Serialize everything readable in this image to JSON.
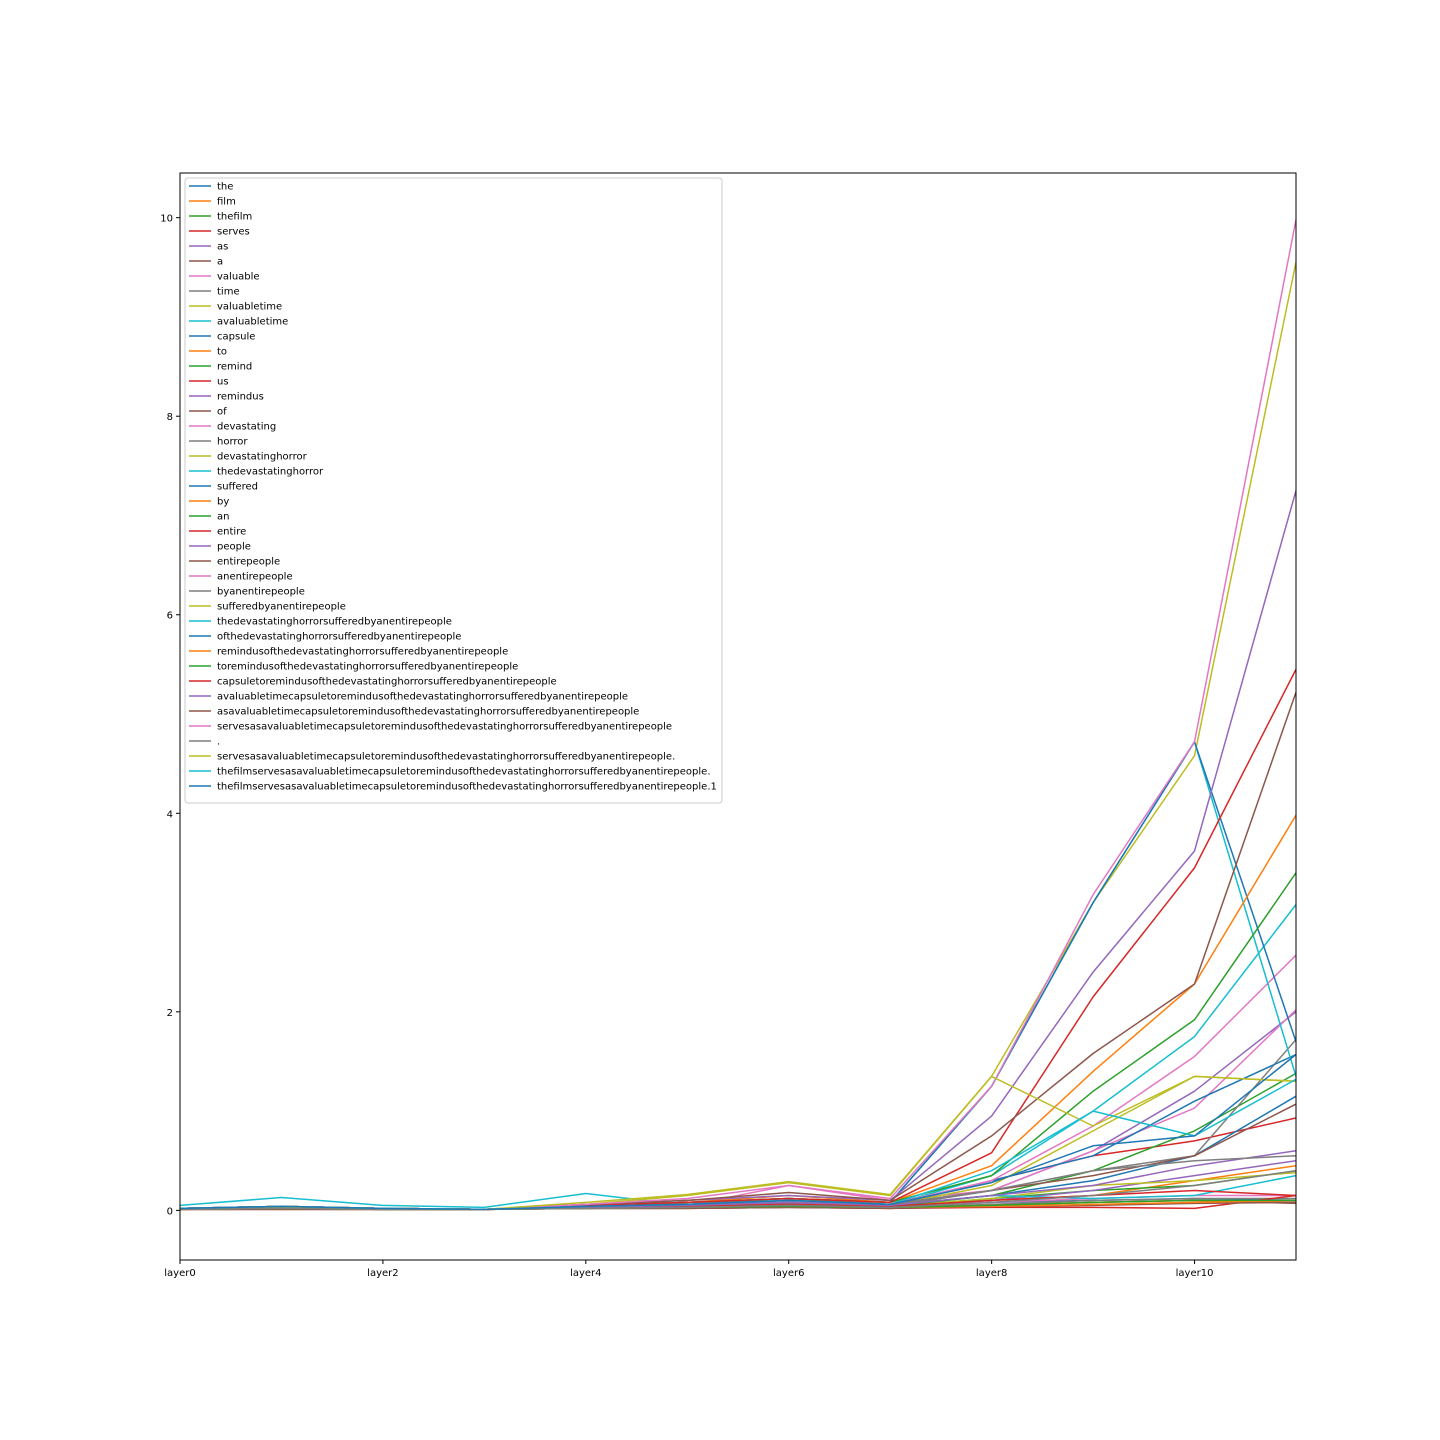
{
  "chart_data": {
    "type": "line",
    "title": "",
    "xlabel": "",
    "ylabel": "",
    "x": [
      "layer0",
      "layer1",
      "layer2",
      "layer3",
      "layer4",
      "layer5",
      "layer6",
      "layer7",
      "layer8",
      "layer9",
      "layer10",
      "layer11"
    ],
    "x_tick_labels": [
      "layer0",
      "layer2",
      "layer4",
      "layer6",
      "layer8",
      "layer10"
    ],
    "y_tick_labels": [
      "0",
      "2",
      "4",
      "6",
      "8",
      "10"
    ],
    "ylim": [
      -0.5,
      10.45
    ],
    "legend_position": "upper-left",
    "grid": false,
    "palette": [
      "#1f77b4",
      "#ff7f0e",
      "#2ca02c",
      "#d62728",
      "#9467bd",
      "#8c564b",
      "#e377c2",
      "#7f7f7f",
      "#bcbd22",
      "#17becf"
    ],
    "series": [
      {
        "name": "the",
        "values": [
          0.01,
          0.02,
          0.01,
          0.01,
          0.03,
          0.04,
          0.06,
          0.03,
          0.08,
          0.1,
          0.12,
          0.1
        ]
      },
      {
        "name": "film",
        "values": [
          0.02,
          0.03,
          0.02,
          0.01,
          0.03,
          0.03,
          0.05,
          0.04,
          0.1,
          0.15,
          0.3,
          0.45
        ]
      },
      {
        "name": "thefilm",
        "values": [
          0.01,
          0.02,
          0.01,
          0.01,
          0.02,
          0.03,
          0.05,
          0.03,
          0.12,
          0.2,
          0.25,
          0.4
        ]
      },
      {
        "name": "serves",
        "values": [
          0.02,
          0.03,
          0.02,
          0.01,
          0.04,
          0.05,
          0.08,
          0.05,
          0.3,
          0.55,
          0.7,
          0.93
        ]
      },
      {
        "name": "as",
        "values": [
          0.01,
          0.02,
          0.01,
          0.01,
          0.03,
          0.03,
          0.04,
          0.03,
          0.1,
          0.2,
          0.35,
          0.5
        ]
      },
      {
        "name": "a",
        "values": [
          0.01,
          0.01,
          0.01,
          0.01,
          0.02,
          0.02,
          0.03,
          0.02,
          0.05,
          0.08,
          0.1,
          0.07
        ]
      },
      {
        "name": "valuable",
        "values": [
          0.01,
          0.02,
          0.01,
          0.01,
          0.02,
          0.03,
          0.05,
          0.03,
          0.08,
          0.12,
          0.15,
          0.15
        ]
      },
      {
        "name": "time",
        "values": [
          0.01,
          0.02,
          0.01,
          0.01,
          0.02,
          0.03,
          0.04,
          0.03,
          0.06,
          0.1,
          0.12,
          0.12
        ]
      },
      {
        "name": "valuabletime",
        "values": [
          0.01,
          0.02,
          0.01,
          0.01,
          0.03,
          0.04,
          0.06,
          0.04,
          0.12,
          0.25,
          0.3,
          0.38
        ]
      },
      {
        "name": "avaluabletime",
        "values": [
          0.02,
          0.03,
          0.02,
          0.01,
          0.03,
          0.05,
          0.06,
          0.04,
          0.15,
          0.12,
          0.15,
          0.35
        ]
      },
      {
        "name": "capsule",
        "values": [
          0.02,
          0.04,
          0.02,
          0.01,
          0.04,
          0.05,
          0.08,
          0.05,
          0.15,
          0.3,
          0.55,
          1.15
        ]
      },
      {
        "name": "to",
        "values": [
          0.01,
          0.02,
          0.01,
          0.01,
          0.02,
          0.03,
          0.04,
          0.03,
          0.05,
          0.08,
          0.1,
          0.08
        ]
      },
      {
        "name": "remind",
        "values": [
          0.02,
          0.03,
          0.02,
          0.01,
          0.03,
          0.04,
          0.06,
          0.04,
          0.15,
          0.4,
          0.8,
          1.38
        ]
      },
      {
        "name": "us",
        "values": [
          0.01,
          0.01,
          0.01,
          0.01,
          0.02,
          0.02,
          0.03,
          0.02,
          0.03,
          0.03,
          0.02,
          0.15
        ]
      },
      {
        "name": "remindus",
        "values": [
          0.02,
          0.03,
          0.02,
          0.01,
          0.03,
          0.04,
          0.07,
          0.04,
          0.2,
          0.6,
          1.2,
          2.0
        ]
      },
      {
        "name": "of",
        "values": [
          0.01,
          0.01,
          0.01,
          0.01,
          0.02,
          0.02,
          0.03,
          0.02,
          0.04,
          0.05,
          0.07,
          0.08
        ]
      },
      {
        "name": "devastating",
        "values": [
          0.02,
          0.03,
          0.02,
          0.01,
          0.03,
          0.05,
          0.25,
          0.1,
          0.2,
          0.6,
          1.03,
          2.02
        ]
      },
      {
        "name": "horror",
        "values": [
          0.02,
          0.03,
          0.02,
          0.01,
          0.03,
          0.04,
          0.06,
          0.04,
          0.2,
          0.4,
          0.55,
          1.72
        ]
      },
      {
        "name": "devastatinghorror",
        "values": [
          0.02,
          0.03,
          0.02,
          0.01,
          0.04,
          0.05,
          0.08,
          0.05,
          0.25,
          0.8,
          1.35,
          1.3
        ]
      },
      {
        "name": "thedevastatinghorror",
        "values": [
          0.05,
          0.13,
          0.05,
          0.03,
          0.17,
          0.05,
          0.1,
          0.05,
          0.35,
          1.0,
          1.75,
          3.08
        ]
      },
      {
        "name": "suffered",
        "values": [
          0.02,
          0.03,
          0.02,
          0.01,
          0.03,
          0.05,
          0.08,
          0.05,
          0.3,
          0.55,
          1.1,
          1.57
        ]
      },
      {
        "name": "by",
        "values": [
          0.01,
          0.02,
          0.01,
          0.01,
          0.02,
          0.03,
          0.04,
          0.03,
          0.04,
          0.06,
          0.08,
          0.1
        ]
      },
      {
        "name": "an",
        "values": [
          0.01,
          0.02,
          0.01,
          0.01,
          0.02,
          0.03,
          0.04,
          0.03,
          0.05,
          0.08,
          0.1,
          0.1
        ]
      },
      {
        "name": "entire",
        "values": [
          0.02,
          0.03,
          0.02,
          0.01,
          0.03,
          0.04,
          0.06,
          0.04,
          0.1,
          0.15,
          0.2,
          0.15
        ]
      },
      {
        "name": "people",
        "values": [
          0.02,
          0.03,
          0.02,
          0.01,
          0.03,
          0.05,
          0.08,
          0.05,
          0.15,
          0.25,
          0.45,
          0.6
        ]
      },
      {
        "name": "entirepeople",
        "values": [
          0.02,
          0.03,
          0.02,
          0.01,
          0.04,
          0.06,
          0.1,
          0.06,
          0.2,
          0.35,
          0.55,
          1.07
        ]
      },
      {
        "name": "anentirepeople",
        "values": [
          0.02,
          0.03,
          0.02,
          0.01,
          0.04,
          0.06,
          0.1,
          0.06,
          0.3,
          0.85,
          1.55,
          2.57
        ]
      },
      {
        "name": "byanentirepeople",
        "values": [
          0.02,
          0.03,
          0.02,
          0.01,
          0.04,
          0.06,
          0.12,
          0.06,
          0.2,
          0.4,
          0.5,
          0.55
        ]
      },
      {
        "name": "sufferedbyanentirepeople",
        "values": [
          0.01,
          0.03,
          0.02,
          0.01,
          0.06,
          0.15,
          0.28,
          0.15,
          1.35,
          3.1,
          4.58,
          9.55
        ]
      },
      {
        "name": "thedevastatinghorrorsufferedbyanentirepeople",
        "values": [
          0.02,
          0.04,
          0.02,
          0.01,
          0.05,
          0.08,
          0.12,
          0.08,
          1.25,
          3.1,
          4.72,
          1.35
        ]
      },
      {
        "name": "ofthedevastatinghorrorsufferedbyanentirepeople",
        "values": [
          0.02,
          0.04,
          0.02,
          0.01,
          0.05,
          0.08,
          0.12,
          0.08,
          1.25,
          3.1,
          4.72,
          1.7
        ]
      },
      {
        "name": "remindusofthedevastatinghorrorsufferedbyanentirepeople",
        "values": [
          0.02,
          0.04,
          0.02,
          0.01,
          0.05,
          0.08,
          0.15,
          0.08,
          0.45,
          1.4,
          2.28,
          3.98
        ]
      },
      {
        "name": "toremindusofthedevastatinghorrorsufferedbyanentirepeople",
        "values": [
          0.02,
          0.04,
          0.02,
          0.01,
          0.05,
          0.08,
          0.12,
          0.08,
          0.35,
          1.2,
          1.92,
          3.4
        ]
      },
      {
        "name": "capsuletoremindusofthedevastatinghorrorsufferedbyanentirepeople",
        "values": [
          0.02,
          0.04,
          0.02,
          0.01,
          0.05,
          0.08,
          0.12,
          0.08,
          0.58,
          2.15,
          3.45,
          5.45
        ]
      },
      {
        "name": "avaluabletimecapsuletoremindusofthedevastatinghorrorsufferedbyanentirepeople",
        "values": [
          0.02,
          0.04,
          0.02,
          0.01,
          0.06,
          0.1,
          0.15,
          0.1,
          0.95,
          2.4,
          3.62,
          7.25
        ]
      },
      {
        "name": "asavaluabletimecapsuletoremindusofthedevastatinghorrorsufferedbyanentirepeople",
        "values": [
          0.02,
          0.04,
          0.02,
          0.01,
          0.06,
          0.1,
          0.18,
          0.1,
          0.75,
          1.58,
          2.28,
          5.22
        ]
      },
      {
        "name": "servesasavaluabletimecapsuletoremindusofthedevastatinghorrorsufferedbyanentirepeople",
        "values": [
          0.02,
          0.04,
          0.02,
          0.01,
          0.06,
          0.12,
          0.25,
          0.12,
          1.25,
          3.18,
          4.72,
          9.98
        ]
      },
      {
        "name": ".",
        "values": [
          0.01,
          0.02,
          0.01,
          0.01,
          0.02,
          0.03,
          0.05,
          0.03,
          0.08,
          0.15,
          0.25,
          0.4
        ]
      },
      {
        "name": "servesasavaluabletimecapsuletoremindusofthedevastatinghorrorsufferedbyanentirepeople.",
        "values": [
          0.02,
          0.04,
          0.02,
          0.01,
          0.08,
          0.16,
          0.29,
          0.16,
          1.35,
          0.85,
          1.35,
          1.3
        ]
      },
      {
        "name": "thefilmservesasavaluabletimecapsuletoremindusofthedevastatinghorrorsufferedbyanentirepeople.",
        "values": [
          0.02,
          0.04,
          0.02,
          0.01,
          0.04,
          0.06,
          0.1,
          0.06,
          0.4,
          1.0,
          0.75,
          1.32
        ]
      },
      {
        "name": "thefilmservesasavaluabletimecapsuletoremindusofthedevastatinghorrorsufferedbyanentirepeople.1",
        "values": [
          0.02,
          0.04,
          0.02,
          0.01,
          0.04,
          0.06,
          0.1,
          0.06,
          0.28,
          0.65,
          0.75,
          1.57
        ]
      }
    ]
  }
}
